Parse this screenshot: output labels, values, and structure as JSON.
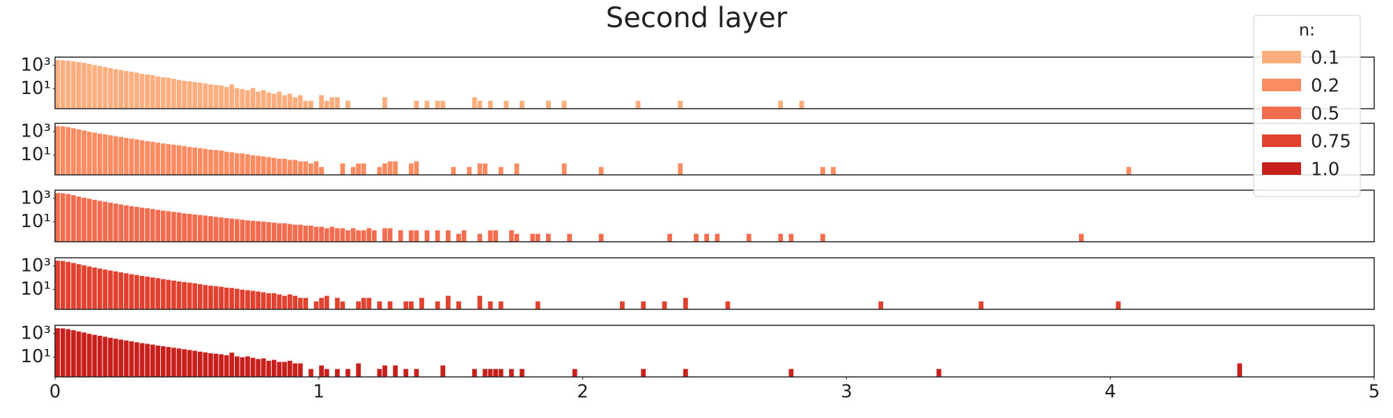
{
  "chart_data": {
    "type": "bar",
    "title": "Second layer",
    "legend_title": "n:",
    "legend": "upper right",
    "log_y": true,
    "bar_width": 0.02,
    "xlim": [
      0,
      5
    ],
    "xticks": [
      0,
      1,
      2,
      3,
      4,
      5
    ],
    "ylim": [
      0.2,
      5000
    ],
    "yticks": [
      {
        "value": 10,
        "label": "10¹"
      },
      {
        "value": 1000,
        "label": "10³"
      }
    ],
    "series": [
      {
        "name": "0.1",
        "color": "#fcae7f",
        "x": [
          0,
          0.02,
          0.04,
          0.06,
          0.08,
          0.1,
          0.12,
          0.14,
          0.16,
          0.18,
          0.2,
          0.22,
          0.24,
          0.26,
          0.28,
          0.3,
          0.32,
          0.34,
          0.36,
          0.38,
          0.4,
          0.42,
          0.44,
          0.46,
          0.48,
          0.5,
          0.52,
          0.54,
          0.56,
          0.58,
          0.6,
          0.62,
          0.64,
          0.66,
          0.68,
          0.7,
          0.72,
          0.74,
          0.76,
          0.78,
          0.8,
          0.82,
          0.84,
          0.86,
          0.88,
          0.9,
          0.92,
          0.94,
          0.96,
          1.0,
          1.02,
          1.04,
          1.06,
          1.1,
          1.24,
          1.36,
          1.4,
          1.44,
          1.46,
          1.58,
          1.6,
          1.64,
          1.7,
          1.76,
          1.86,
          1.92,
          2.2,
          2.36,
          2.74,
          2.82
        ],
        "values": [
          3000,
          2800,
          2600,
          2300,
          2000,
          1700,
          1400,
          1100,
          900,
          750,
          600,
          500,
          420,
          350,
          300,
          250,
          200,
          170,
          150,
          120,
          100,
          90,
          75,
          60,
          50,
          45,
          40,
          35,
          30,
          25,
          22,
          20,
          15,
          25,
          12,
          10,
          8,
          12,
          6,
          8,
          5,
          4,
          6,
          3,
          4,
          2,
          3,
          1,
          1,
          3,
          1,
          2,
          2,
          1,
          2,
          1,
          1,
          1,
          1,
          2,
          1,
          1,
          1,
          1,
          1,
          1,
          1,
          1,
          1,
          1
        ]
      },
      {
        "name": "0.2",
        "color": "#fb8c61",
        "x": [
          0,
          0.02,
          0.04,
          0.06,
          0.08,
          0.1,
          0.12,
          0.14,
          0.16,
          0.18,
          0.2,
          0.22,
          0.24,
          0.26,
          0.28,
          0.3,
          0.32,
          0.34,
          0.36,
          0.38,
          0.4,
          0.42,
          0.44,
          0.46,
          0.48,
          0.5,
          0.52,
          0.54,
          0.56,
          0.58,
          0.6,
          0.62,
          0.64,
          0.66,
          0.68,
          0.7,
          0.72,
          0.74,
          0.76,
          0.78,
          0.8,
          0.82,
          0.84,
          0.86,
          0.88,
          0.9,
          0.92,
          0.94,
          0.96,
          0.98,
          1.0,
          1.08,
          1.12,
          1.14,
          1.16,
          1.22,
          1.24,
          1.26,
          1.28,
          1.34,
          1.36,
          1.5,
          1.56,
          1.6,
          1.62,
          1.68,
          1.74,
          1.92,
          2.06,
          2.36,
          2.9,
          2.94,
          4.06
        ],
        "values": [
          3000,
          2900,
          2500,
          2000,
          1600,
          1300,
          1000,
          850,
          700,
          600,
          500,
          420,
          360,
          300,
          260,
          220,
          190,
          160,
          140,
          120,
          100,
          90,
          80,
          70,
          60,
          50,
          45,
          40,
          35,
          30,
          28,
          25,
          20,
          18,
          15,
          14,
          12,
          10,
          9,
          8,
          7,
          6,
          5,
          5,
          4,
          4,
          3,
          3,
          2,
          3,
          1,
          2,
          1,
          2,
          2,
          1,
          2,
          3,
          3,
          2,
          3,
          1,
          1,
          2,
          2,
          1,
          2,
          2,
          1,
          2,
          1,
          1,
          1
        ]
      },
      {
        "name": "0.5",
        "color": "#f26d4f",
        "x": [
          0,
          0.02,
          0.04,
          0.06,
          0.08,
          0.1,
          0.12,
          0.14,
          0.16,
          0.18,
          0.2,
          0.22,
          0.24,
          0.26,
          0.28,
          0.3,
          0.32,
          0.34,
          0.36,
          0.38,
          0.4,
          0.42,
          0.44,
          0.46,
          0.48,
          0.5,
          0.52,
          0.54,
          0.56,
          0.58,
          0.6,
          0.62,
          0.64,
          0.66,
          0.68,
          0.7,
          0.72,
          0.74,
          0.76,
          0.78,
          0.8,
          0.82,
          0.84,
          0.86,
          0.88,
          0.9,
          0.92,
          0.94,
          0.96,
          0.98,
          1.0,
          1.02,
          1.04,
          1.06,
          1.08,
          1.1,
          1.12,
          1.14,
          1.16,
          1.18,
          1.2,
          1.24,
          1.26,
          1.3,
          1.34,
          1.36,
          1.4,
          1.44,
          1.48,
          1.52,
          1.54,
          1.6,
          1.64,
          1.66,
          1.72,
          1.74,
          1.8,
          1.82,
          1.86,
          1.94,
          2.06,
          2.32,
          2.42,
          2.46,
          2.5,
          2.62,
          2.74,
          2.78,
          2.9,
          3.88
        ],
        "values": [
          3000,
          2900,
          2500,
          2000,
          1500,
          1200,
          1000,
          800,
          650,
          550,
          450,
          380,
          320,
          270,
          230,
          200,
          170,
          150,
          130,
          110,
          95,
          85,
          75,
          65,
          55,
          50,
          45,
          40,
          36,
          32,
          28,
          25,
          22,
          20,
          18,
          16,
          14,
          13,
          12,
          11,
          10,
          9,
          8,
          8,
          7,
          6,
          6,
          5,
          5,
          4,
          4,
          3,
          4,
          3,
          3,
          2,
          3,
          2,
          2,
          3,
          2,
          3,
          3,
          2,
          2,
          2,
          2,
          2,
          2,
          1,
          2,
          1,
          2,
          2,
          2,
          1,
          1,
          1,
          1,
          1,
          1,
          1,
          1,
          1,
          1,
          1,
          1,
          1,
          1,
          1
        ]
      },
      {
        "name": "0.75",
        "color": "#e0422f",
        "x": [
          0,
          0.02,
          0.04,
          0.06,
          0.08,
          0.1,
          0.12,
          0.14,
          0.16,
          0.18,
          0.2,
          0.22,
          0.24,
          0.26,
          0.28,
          0.3,
          0.32,
          0.34,
          0.36,
          0.38,
          0.4,
          0.42,
          0.44,
          0.46,
          0.48,
          0.5,
          0.52,
          0.54,
          0.56,
          0.58,
          0.6,
          0.62,
          0.64,
          0.66,
          0.68,
          0.7,
          0.72,
          0.74,
          0.76,
          0.78,
          0.8,
          0.82,
          0.84,
          0.86,
          0.88,
          0.9,
          0.92,
          0.94,
          0.98,
          1.0,
          1.02,
          1.06,
          1.08,
          1.14,
          1.16,
          1.18,
          1.22,
          1.26,
          1.32,
          1.34,
          1.38,
          1.44,
          1.48,
          1.52,
          1.6,
          1.64,
          1.68,
          1.82,
          2.14,
          2.22,
          2.3,
          2.38,
          2.54,
          3.12,
          3.5,
          4.02
        ],
        "values": [
          3000,
          2800,
          2400,
          1900,
          1500,
          1200,
          950,
          780,
          640,
          520,
          430,
          360,
          300,
          250,
          210,
          180,
          150,
          130,
          110,
          95,
          80,
          70,
          60,
          50,
          45,
          40,
          35,
          30,
          25,
          22,
          20,
          18,
          15,
          14,
          12,
          10,
          9,
          8,
          7,
          6,
          5,
          5,
          4,
          3,
          4,
          3,
          2,
          2,
          1,
          2,
          3,
          2,
          1,
          1,
          2,
          2,
          1,
          1,
          1,
          1,
          2,
          1,
          3,
          1,
          3,
          1,
          1,
          1,
          1,
          1,
          1,
          2,
          1,
          1,
          1,
          1
        ]
      },
      {
        "name": "1.0",
        "color": "#c8201d",
        "x": [
          0,
          0.02,
          0.04,
          0.06,
          0.08,
          0.1,
          0.12,
          0.14,
          0.16,
          0.18,
          0.2,
          0.22,
          0.24,
          0.26,
          0.28,
          0.3,
          0.32,
          0.34,
          0.36,
          0.38,
          0.4,
          0.42,
          0.44,
          0.46,
          0.48,
          0.5,
          0.52,
          0.54,
          0.56,
          0.58,
          0.6,
          0.62,
          0.64,
          0.66,
          0.68,
          0.7,
          0.72,
          0.74,
          0.76,
          0.78,
          0.8,
          0.82,
          0.84,
          0.86,
          0.88,
          0.9,
          0.92,
          0.96,
          1.0,
          1.02,
          1.06,
          1.1,
          1.14,
          1.22,
          1.24,
          1.28,
          1.32,
          1.36,
          1.46,
          1.58,
          1.62,
          1.64,
          1.66,
          1.68,
          1.72,
          1.76,
          1.96,
          2.22,
          2.38,
          2.78,
          3.34,
          4.48
        ],
        "values": [
          3000,
          2900,
          2500,
          2000,
          1600,
          1300,
          1000,
          820,
          680,
          560,
          460,
          380,
          320,
          270,
          230,
          190,
          160,
          140,
          120,
          100,
          88,
          75,
          65,
          56,
          48,
          42,
          36,
          30,
          26,
          22,
          20,
          18,
          15,
          25,
          12,
          10,
          12,
          9,
          7,
          8,
          5,
          6,
          4,
          4,
          5,
          3,
          3,
          1,
          2,
          1,
          1,
          1,
          3,
          1,
          2,
          2,
          1,
          1,
          2,
          1,
          1,
          1,
          1,
          1,
          1,
          1,
          1,
          1,
          1,
          1,
          1,
          3
        ]
      }
    ]
  }
}
